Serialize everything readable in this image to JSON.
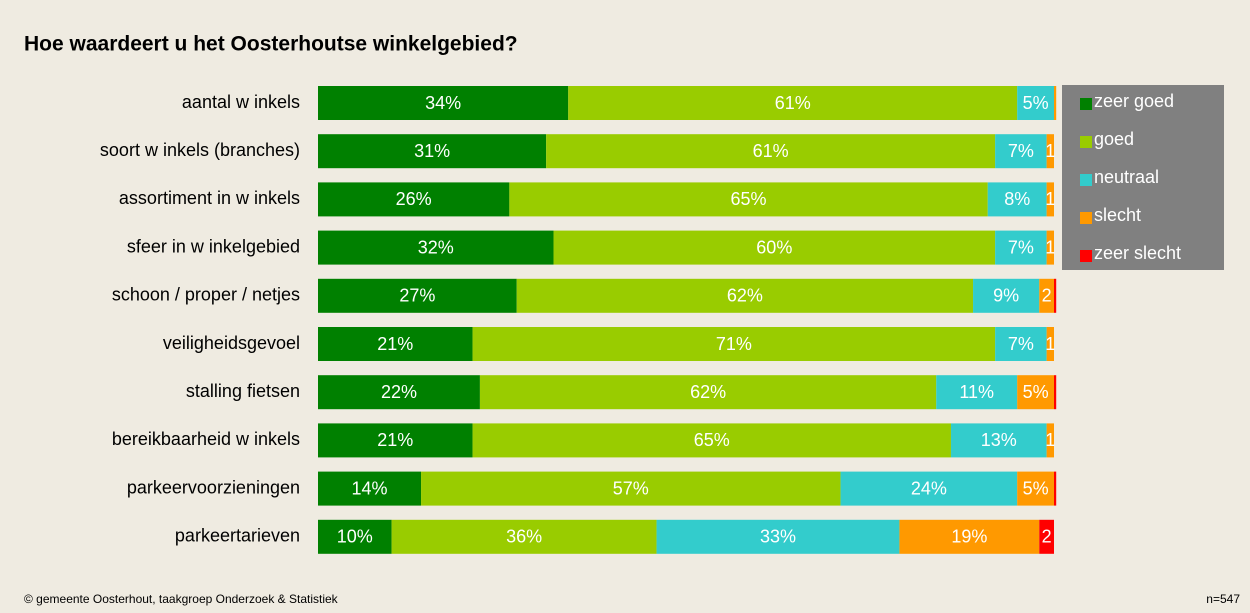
{
  "chart_data": {
    "type": "stacked-bar-horizontal",
    "title": "Hoe waardeert u het Oosterhoutse winkelgebied?",
    "source": "© gemeente Oosterhout, taakgroep Onderzoek & Statistiek",
    "note": "n=547",
    "xlim": [
      0,
      100
    ],
    "categories": [
      "aantal w inkels",
      "soort w inkels (branches)",
      "assortiment in w inkels",
      "sfeer in w inkelgebied",
      "schoon / proper / netjes",
      "veiligheidsgevoel",
      "stalling fietsen",
      "bereikbaarheid w inkels",
      "parkeervoorzieningen",
      "parkeertarieven"
    ],
    "series": [
      {
        "name": "zeer goed",
        "color": "#008000",
        "values": [
          34,
          31,
          26,
          32,
          27,
          21,
          22,
          21,
          14,
          10
        ],
        "value_labels": [
          "34%",
          "31%",
          "26%",
          "32%",
          "27%",
          "21%",
          "22%",
          "21%",
          "14%",
          "10%"
        ]
      },
      {
        "name": "goed",
        "color": "#99cc00",
        "values": [
          61,
          61,
          65,
          60,
          62,
          71,
          62,
          65,
          57,
          36
        ],
        "value_labels": [
          "61%",
          "61%",
          "65%",
          "60%",
          "62%",
          "71%",
          "62%",
          "65%",
          "57%",
          "36%"
        ]
      },
      {
        "name": "neutraal",
        "color": "#33cccc",
        "values": [
          5,
          7,
          8,
          7,
          9,
          7,
          11,
          13,
          24,
          33
        ],
        "value_labels": [
          "5%",
          "7%",
          "8%",
          "7%",
          "9%",
          "7%",
          "11%",
          "13%",
          "24%",
          "33%"
        ]
      },
      {
        "name": "slecht",
        "color": "#ff9900",
        "values": [
          0.3,
          1,
          1,
          1,
          2,
          1,
          5,
          1,
          5,
          19
        ],
        "value_labels": [
          null,
          "1",
          "1",
          "1",
          "2",
          "1",
          "5%",
          "1",
          "5%",
          "19%"
        ]
      },
      {
        "name": "zeer slecht",
        "color": "#ff0000",
        "values": [
          0,
          0,
          0,
          0,
          0.3,
          0,
          0.3,
          0,
          0.3,
          2
        ],
        "value_labels": [
          null,
          null,
          null,
          null,
          null,
          null,
          null,
          null,
          null,
          "2"
        ]
      }
    ],
    "legend": "right"
  }
}
